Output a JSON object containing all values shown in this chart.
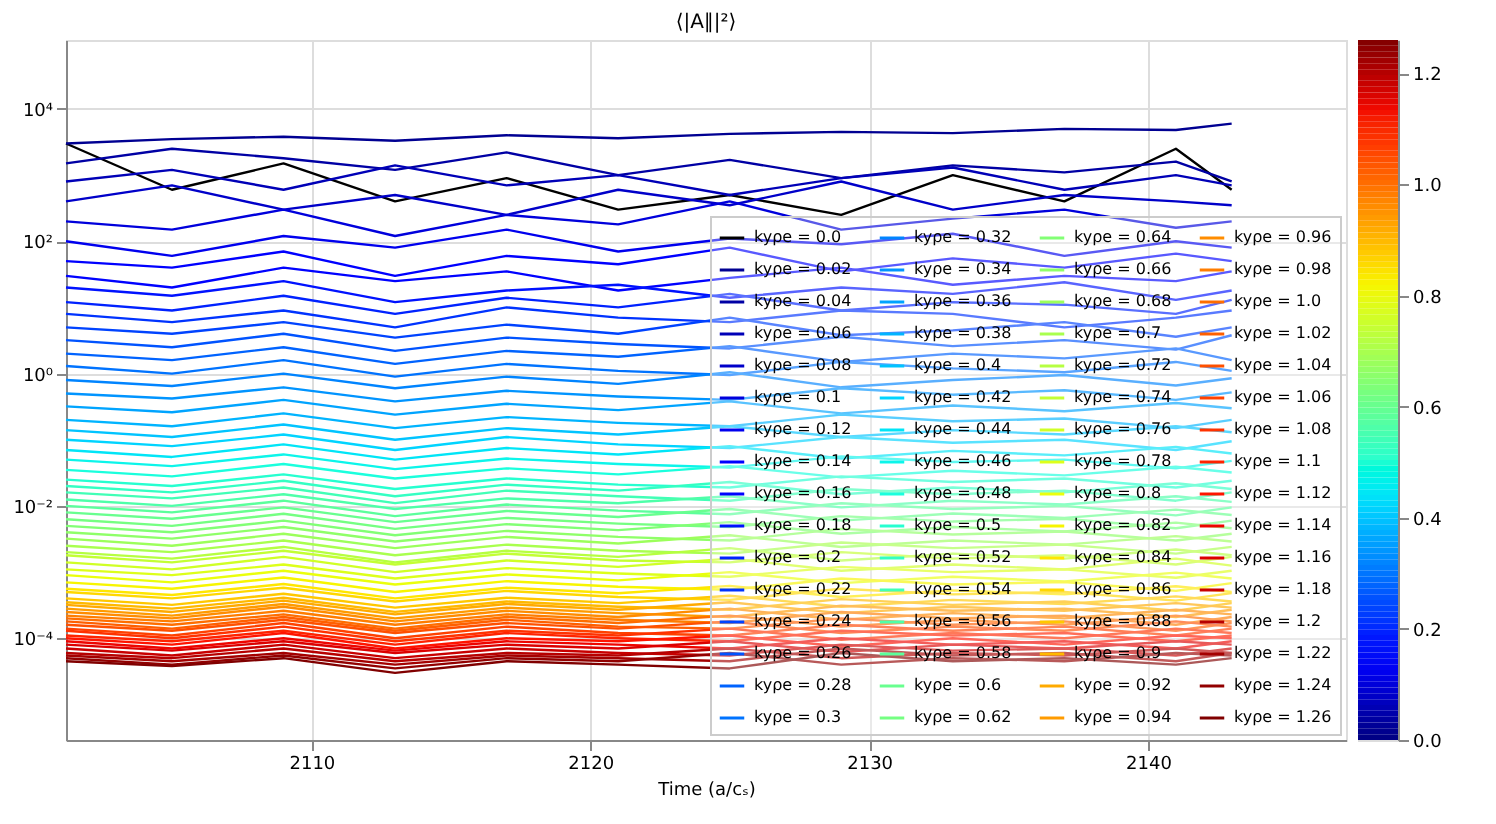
{
  "chart_data": {
    "type": "line",
    "title": "⟨|A∥|²⟩",
    "xlabel": "Time (a/cₛ)",
    "x": [
      2101.2,
      2105,
      2109,
      2113,
      2117,
      2121,
      2125,
      2129,
      2133,
      2137,
      2141,
      2143
    ],
    "xlim": [
      2101.2,
      2147.1
    ],
    "xticks": [
      2110,
      2120,
      2130,
      2140
    ],
    "ylim": [
      2.9e-06,
      110000.0
    ],
    "log": true,
    "yticks": [
      {
        "value": 0.0001,
        "label": "10⁻⁴"
      },
      {
        "value": 0.01,
        "label": "10⁻²"
      },
      {
        "value": 1,
        "label": "10⁰"
      },
      {
        "value": 100,
        "label": "10²"
      },
      {
        "value": 10000,
        "label": "10⁴"
      }
    ],
    "clim": [
      0,
      1.26
    ],
    "cticks": [
      {
        "value": 0,
        "label": "0.0"
      },
      {
        "value": 0.2,
        "label": "0.2"
      },
      {
        "value": 0.4,
        "label": "0.4"
      },
      {
        "value": 0.6,
        "label": "0.6"
      },
      {
        "value": 0.8,
        "label": "0.8"
      },
      {
        "value": 1.0,
        "label": "1.0"
      },
      {
        "value": 1.2,
        "label": "1.2"
      }
    ],
    "grid": true,
    "legend": "bottom right",
    "marker": "none",
    "line_style": "solid",
    "series": [
      {
        "name": "kyρe = 0.0",
        "color": "#000000",
        "values": [
          3000,
          600,
          1500,
          400,
          900,
          300,
          500,
          250,
          1000,
          400,
          2500,
          600
        ]
      },
      {
        "name": "kyρe = 0.02",
        "color": "#000092",
        "values": [
          3000,
          3500,
          3800,
          3300,
          4000,
          3600,
          4200,
          4500,
          4300,
          5000,
          4800,
          6000
        ]
      },
      {
        "name": "kyρe = 0.04",
        "color": "#0000a4",
        "values": [
          1500,
          2500,
          1800,
          1200,
          2200,
          1000,
          1700,
          900,
          1400,
          1100,
          1600,
          800
        ]
      },
      {
        "name": "kyρe = 0.06",
        "color": "#0000b7",
        "values": [
          800,
          1200,
          600,
          1400,
          700,
          1000,
          500,
          900,
          1300,
          600,
          1000,
          700
        ]
      },
      {
        "name": "kyρe = 0.08",
        "color": "#0000c9",
        "values": [
          400,
          700,
          300,
          500,
          250,
          600,
          350,
          800,
          300,
          500,
          400,
          350
        ]
      },
      {
        "name": "kyρe = 0.1",
        "color": "#0000dc",
        "values": [
          200,
          150,
          300,
          120,
          250,
          180,
          400,
          150,
          220,
          300,
          160,
          200
        ]
      },
      {
        "name": "kyρe = 0.12",
        "color": "#0000ee",
        "values": [
          100,
          60,
          120,
          80,
          150,
          70,
          110,
          90,
          130,
          60,
          100,
          80
        ]
      },
      {
        "name": "kyρe = 0.14",
        "color": "#0000ff",
        "values": [
          50,
          40,
          70,
          30,
          60,
          45,
          80,
          35,
          55,
          40,
          65,
          50
        ]
      },
      {
        "name": "kyρe = 0.16",
        "color": "#0002ff",
        "values": [
          30,
          20,
          40,
          25,
          35,
          18,
          28,
          40,
          22,
          30,
          25,
          35
        ]
      },
      {
        "name": "kyρe = 0.18",
        "color": "#0012ff",
        "values": [
          20,
          15,
          25,
          12,
          18,
          22,
          14,
          20,
          16,
          24,
          13,
          18
        ]
      },
      {
        "name": "kyρe = 0.2",
        "color": "#0022ff",
        "values": [
          12,
          9,
          15,
          8,
          14,
          10,
          16,
          9,
          12,
          11,
          8,
          13
        ]
      },
      {
        "name": "kyρe = 0.22",
        "color": "#0033ff",
        "values": [
          8,
          6,
          9,
          5,
          10,
          7,
          6,
          9,
          8,
          5,
          7,
          9
        ]
      },
      {
        "name": "kyρe = 0.24",
        "color": "#0043ff",
        "values": [
          5,
          4,
          6,
          3.5,
          5.5,
          4,
          7,
          3.8,
          4.5,
          6,
          3.6,
          5
        ]
      },
      {
        "name": "kyρe = 0.26",
        "color": "#0053ff",
        "values": [
          3.2,
          2.5,
          4,
          2.2,
          3.5,
          2.8,
          2.4,
          3.6,
          2.6,
          3.2,
          2.3,
          3.8
        ]
      },
      {
        "name": "kyρe = 0.28",
        "color": "#0063ff",
        "values": [
          2,
          1.6,
          2.5,
          1.4,
          2.2,
          1.8,
          2.6,
          1.5,
          2,
          1.7,
          2.4,
          1.6
        ]
      },
      {
        "name": "kyρe = 0.3",
        "color": "#0073ff",
        "values": [
          1.3,
          1,
          1.6,
          0.9,
          1.4,
          1.1,
          0.95,
          1.5,
          1.2,
          1.05,
          1.5,
          1.1
        ]
      },
      {
        "name": "kyρe = 0.32",
        "color": "#0084ff",
        "values": [
          0.8,
          0.65,
          1,
          0.6,
          0.9,
          0.7,
          1.05,
          0.62,
          0.8,
          0.95,
          0.66,
          0.85
        ]
      },
      {
        "name": "kyρe = 0.34",
        "color": "#0094ff",
        "values": [
          0.5,
          0.42,
          0.62,
          0.38,
          0.55,
          0.45,
          0.4,
          0.6,
          0.48,
          0.56,
          0.4,
          0.52
        ]
      },
      {
        "name": "kyρe = 0.36",
        "color": "#00a4ff",
        "values": [
          0.32,
          0.26,
          0.4,
          0.24,
          0.35,
          0.28,
          0.38,
          0.25,
          0.33,
          0.27,
          0.36,
          0.3
        ]
      },
      {
        "name": "kyρe = 0.38",
        "color": "#00b4ff",
        "values": [
          0.2,
          0.16,
          0.25,
          0.15,
          0.22,
          0.18,
          0.16,
          0.24,
          0.19,
          0.21,
          0.15,
          0.2
        ]
      },
      {
        "name": "kyρe = 0.4",
        "color": "#00c4ff",
        "values": [
          0.14,
          0.11,
          0.17,
          0.1,
          0.15,
          0.12,
          0.16,
          0.11,
          0.14,
          0.12,
          0.16,
          0.13
        ]
      },
      {
        "name": "kyρe = 0.42",
        "color": "#00d4ff",
        "values": [
          0.1,
          0.08,
          0.12,
          0.07,
          0.11,
          0.085,
          0.075,
          0.11,
          0.09,
          0.1,
          0.07,
          0.095
        ]
      },
      {
        "name": "kyρe = 0.44",
        "color": "#00e5f7",
        "values": [
          0.07,
          0.055,
          0.085,
          0.05,
          0.075,
          0.06,
          0.08,
          0.052,
          0.068,
          0.058,
          0.078,
          0.062
        ]
      },
      {
        "name": "kyρe = 0.46",
        "color": "#0cf5ea",
        "values": [
          0.05,
          0.04,
          0.06,
          0.036,
          0.052,
          0.043,
          0.038,
          0.056,
          0.046,
          0.05,
          0.037,
          0.048
        ]
      },
      {
        "name": "kyρe = 0.48",
        "color": "#1affdd",
        "values": [
          0.035,
          0.028,
          0.043,
          0.026,
          0.037,
          0.03,
          0.04,
          0.027,
          0.034,
          0.029,
          0.039,
          0.032
        ]
      },
      {
        "name": "kyρe = 0.5",
        "color": "#26ffd0",
        "values": [
          0.025,
          0.02,
          0.03,
          0.018,
          0.026,
          0.021,
          0.019,
          0.028,
          0.023,
          0.026,
          0.019,
          0.024
        ]
      },
      {
        "name": "kyρe = 0.52",
        "color": "#34ffc3",
        "values": [
          0.02,
          0.016,
          0.024,
          0.014,
          0.021,
          0.017,
          0.023,
          0.015,
          0.019,
          0.016,
          0.022,
          0.018
        ]
      },
      {
        "name": "kyρe = 0.54",
        "color": "#41ffb6",
        "values": [
          0.016,
          0.013,
          0.019,
          0.011,
          0.017,
          0.014,
          0.012,
          0.018,
          0.015,
          0.017,
          0.012,
          0.016
        ]
      },
      {
        "name": "kyρe = 0.56",
        "color": "#4effa9",
        "values": [
          0.0125,
          0.01,
          0.015,
          0.009,
          0.013,
          0.011,
          0.014,
          0.0095,
          0.012,
          0.0105,
          0.014,
          0.0115
        ]
      },
      {
        "name": "kyρe = 0.58",
        "color": "#5bff9c",
        "values": [
          0.01,
          0.008,
          0.012,
          0.007,
          0.0105,
          0.0085,
          0.0075,
          0.011,
          0.009,
          0.01,
          0.0072,
          0.0095
        ]
      },
      {
        "name": "kyρe = 0.6",
        "color": "#68ff8f",
        "values": [
          0.008,
          0.0064,
          0.0095,
          0.0057,
          0.0084,
          0.0068,
          0.009,
          0.006,
          0.0077,
          0.0066,
          0.0088,
          0.0073
        ]
      },
      {
        "name": "kyρe = 0.62",
        "color": "#75ff82",
        "values": [
          0.0063,
          0.005,
          0.0076,
          0.0045,
          0.0066,
          0.0054,
          0.0048,
          0.007,
          0.0058,
          0.0064,
          0.0046,
          0.006
        ]
      },
      {
        "name": "kyρe = 0.64",
        "color": "#82ff75",
        "values": [
          0.005,
          0.004,
          0.006,
          0.0036,
          0.0053,
          0.0043,
          0.0057,
          0.0038,
          0.0048,
          0.0041,
          0.0056,
          0.0046
        ]
      },
      {
        "name": "kyρe = 0.66",
        "color": "#8fff68",
        "values": [
          0.004,
          0.0032,
          0.0048,
          0.0029,
          0.0042,
          0.0034,
          0.003,
          0.0045,
          0.0037,
          0.0041,
          0.003,
          0.0038
        ]
      },
      {
        "name": "kyρe = 0.68",
        "color": "#9cff5b",
        "values": [
          0.0032,
          0.0025,
          0.0038,
          0.0023,
          0.0034,
          0.0027,
          0.0036,
          0.0024,
          0.003,
          0.0026,
          0.0035,
          0.0029
        ]
      },
      {
        "name": "kyρe = 0.7",
        "color": "#a9ff4e",
        "values": [
          0.0025,
          0.002,
          0.003,
          0.0018,
          0.0026,
          0.0021,
          0.0019,
          0.0028,
          0.0023,
          0.0026,
          0.0019,
          0.0024
        ]
      },
      {
        "name": "kyρe = 0.72",
        "color": "#b6ff41",
        "values": [
          0.002,
          0.0016,
          0.0024,
          0.0014,
          0.0021,
          0.0017,
          0.0023,
          0.0015,
          0.0019,
          0.0016,
          0.0022,
          0.0018
        ]
      },
      {
        "name": "kyρe = 0.74",
        "color": "#c3ff34",
        "values": [
          0.0018,
          0.0014,
          0.0021,
          0.0013,
          0.0019,
          0.0015,
          0.0014,
          0.002,
          0.0016,
          0.0018,
          0.0013,
          0.0017
        ]
      },
      {
        "name": "kyρe = 0.76",
        "color": "#d0ff26",
        "values": [
          0.0014,
          0.0011,
          0.0017,
          0.001,
          0.0015,
          0.0012,
          0.0016,
          0.00105,
          0.0013,
          0.0011,
          0.0016,
          0.00125
        ]
      },
      {
        "name": "kyρe = 0.78",
        "color": "#ddff1a",
        "values": [
          0.0011,
          0.0009,
          0.0013,
          0.0008,
          0.00115,
          0.00095,
          0.00085,
          0.0012,
          0.001,
          0.0011,
          0.00082,
          0.00105
        ]
      },
      {
        "name": "kyρe = 0.8",
        "color": "#eaff0c",
        "values": [
          0.0009,
          0.0007,
          0.00105,
          0.00065,
          0.00092,
          0.00075,
          0.001,
          0.00068,
          0.00085,
          0.00072,
          0.00098,
          0.0008
        ]
      },
      {
        "name": "kyρe = 0.82",
        "color": "#f7f500",
        "values": [
          0.0007,
          0.00056,
          0.00083,
          0.0005,
          0.00073,
          0.0006,
          0.00054,
          0.0008,
          0.00065,
          0.00071,
          0.00052,
          0.00068
        ]
      },
      {
        "name": "kyρe = 0.84",
        "color": "#ffe600",
        "values": [
          0.00056,
          0.00045,
          0.00066,
          0.0004,
          0.00058,
          0.00048,
          0.00062,
          0.00042,
          0.00053,
          0.00046,
          0.00061,
          0.0005
        ]
      },
      {
        "name": "kyρe = 0.86",
        "color": "#ffd700",
        "values": [
          0.0005,
          0.0004,
          0.00058,
          0.00036,
          0.00052,
          0.00042,
          0.00038,
          0.00056,
          0.00046,
          0.0005,
          0.00037,
          0.00048
        ]
      },
      {
        "name": "kyρe = 0.88",
        "color": "#ffc800",
        "values": [
          0.0004,
          0.00032,
          0.00047,
          0.00029,
          0.00041,
          0.00034,
          0.00044,
          0.0003,
          0.00038,
          0.00033,
          0.00043,
          0.00036
        ]
      },
      {
        "name": "kyρe = 0.9",
        "color": "#ffb900",
        "values": [
          0.00035,
          0.00028,
          0.00041,
          0.00025,
          0.00036,
          0.0003,
          0.00027,
          0.00039,
          0.00032,
          0.00036,
          0.00026,
          0.00034
        ]
      },
      {
        "name": "kyρe = 0.92",
        "color": "#ffaa00",
        "values": [
          0.00032,
          0.00025,
          0.00037,
          0.00023,
          0.00033,
          0.00027,
          0.00035,
          0.00024,
          0.0003,
          0.00026,
          0.00034,
          0.00029
        ]
      },
      {
        "name": "kyρe = 0.94",
        "color": "#ff9b00",
        "values": [
          0.00028,
          0.00022,
          0.00033,
          0.0002,
          0.00029,
          0.00024,
          0.00021,
          0.00031,
          0.00026,
          0.00028,
          0.00021,
          0.00027
        ]
      },
      {
        "name": "kyρe = 0.96",
        "color": "#ff8c00",
        "values": [
          0.00025,
          0.0002,
          0.0003,
          0.00018,
          0.00026,
          0.00021,
          0.00028,
          0.00019,
          0.00024,
          0.0002,
          0.00027,
          0.00023
        ]
      },
      {
        "name": "kyρe = 0.98",
        "color": "#ff7d00",
        "values": [
          0.00022,
          0.00018,
          0.00026,
          0.00016,
          0.00023,
          0.00019,
          0.00017,
          0.00025,
          0.0002,
          0.00022,
          0.00016,
          0.00021
        ]
      },
      {
        "name": "kyρe = 1.0",
        "color": "#ff6e00",
        "values": [
          0.0002,
          0.00016,
          0.00023,
          0.00014,
          0.00021,
          0.00017,
          0.00022,
          0.00015,
          0.00019,
          0.00016,
          0.00022,
          0.00018
        ]
      },
      {
        "name": "kyρe = 1.02",
        "color": "#ff5f00",
        "values": [
          0.00018,
          0.00014,
          0.00021,
          0.00013,
          0.00019,
          0.00015,
          0.00014,
          0.0002,
          0.00016,
          0.00018,
          0.00013,
          0.00017
        ]
      },
      {
        "name": "kyρe = 1.04",
        "color": "#ff5000",
        "values": [
          0.00016,
          0.00013,
          0.00019,
          0.00012,
          0.00017,
          0.00014,
          0.00018,
          0.00012,
          0.00015,
          0.00013,
          0.00018,
          0.00015
        ]
      },
      {
        "name": "kyρe = 1.06",
        "color": "#ff4100",
        "values": [
          0.00014,
          0.00011,
          0.00017,
          0.0001,
          0.00015,
          0.00012,
          0.00011,
          0.00016,
          0.00013,
          0.00015,
          0.00011,
          0.00014
        ]
      },
      {
        "name": "kyρe = 1.08",
        "color": "#ff3200",
        "values": [
          0.00013,
          0.0001,
          0.00015,
          9e-05,
          0.00013,
          0.00011,
          0.00014,
          9.5e-05,
          0.00012,
          0.0001,
          0.00014,
          0.00012
        ]
      },
      {
        "name": "kyρe = 1.1",
        "color": "#ff2300",
        "values": [
          0.00011,
          9e-05,
          0.00013,
          8e-05,
          0.00012,
          0.0001,
          9e-05,
          0.00013,
          0.00011,
          0.00012,
          9e-05,
          0.00011
        ]
      },
      {
        "name": "kyρe = 1.12",
        "color": "#ff1400",
        "values": [
          0.0001,
          8e-05,
          0.00012,
          7e-05,
          0.0001,
          9e-05,
          0.00011,
          7.5e-05,
          0.0001,
          8e-05,
          0.00011,
          0.0001
        ]
      },
      {
        "name": "kyρe = 1.14",
        "color": "#ee0500",
        "values": [
          9e-05,
          7e-05,
          0.0001,
          6.5e-05,
          9e-05,
          8e-05,
          7e-05,
          0.0001,
          8e-05,
          9e-05,
          7e-05,
          9e-05
        ]
      },
      {
        "name": "kyρe = 1.16",
        "color": "#dc0000",
        "values": [
          8e-05,
          6.5e-05,
          9e-05,
          6e-05,
          8e-05,
          7e-05,
          9e-05,
          6.2e-05,
          8e-05,
          7e-05,
          9e-05,
          8e-05
        ]
      },
      {
        "name": "kyρe = 1.18",
        "color": "#c90000",
        "values": [
          7e-05,
          5.5e-05,
          8e-05,
          5e-05,
          7e-05,
          6e-05,
          5.5e-05,
          8e-05,
          6.5e-05,
          7e-05,
          5.5e-05,
          7e-05
        ]
      },
      {
        "name": "kyρe = 1.2",
        "color": "#b70000",
        "values": [
          6e-05,
          5e-05,
          7e-05,
          4.5e-05,
          6e-05,
          5.5e-05,
          7e-05,
          5e-05,
          6e-05,
          5.5e-05,
          7e-05,
          6e-05
        ]
      },
      {
        "name": "kyρe = 1.22",
        "color": "#a40000",
        "values": [
          5.5e-05,
          4.5e-05,
          6e-05,
          4e-05,
          5.5e-05,
          5e-05,
          4.5e-05,
          7e-05,
          5.5e-05,
          6e-05,
          4.5e-05,
          6e-05
        ]
      },
      {
        "name": "kyρe = 1.24",
        "color": "#920000",
        "values": [
          5e-05,
          4e-05,
          5.5e-05,
          3.5e-05,
          5e-05,
          4.5e-05,
          6e-05,
          4e-05,
          5e-05,
          4.5e-05,
          6e-05,
          5.5e-05
        ]
      },
      {
        "name": "kyρe = 1.26",
        "color": "#800000",
        "values": [
          4.5e-05,
          3.8e-05,
          5e-05,
          3e-05,
          4.5e-05,
          4e-05,
          3.5e-05,
          6e-05,
          4.5e-05,
          5e-05,
          4e-05,
          5e-05
        ]
      }
    ]
  }
}
